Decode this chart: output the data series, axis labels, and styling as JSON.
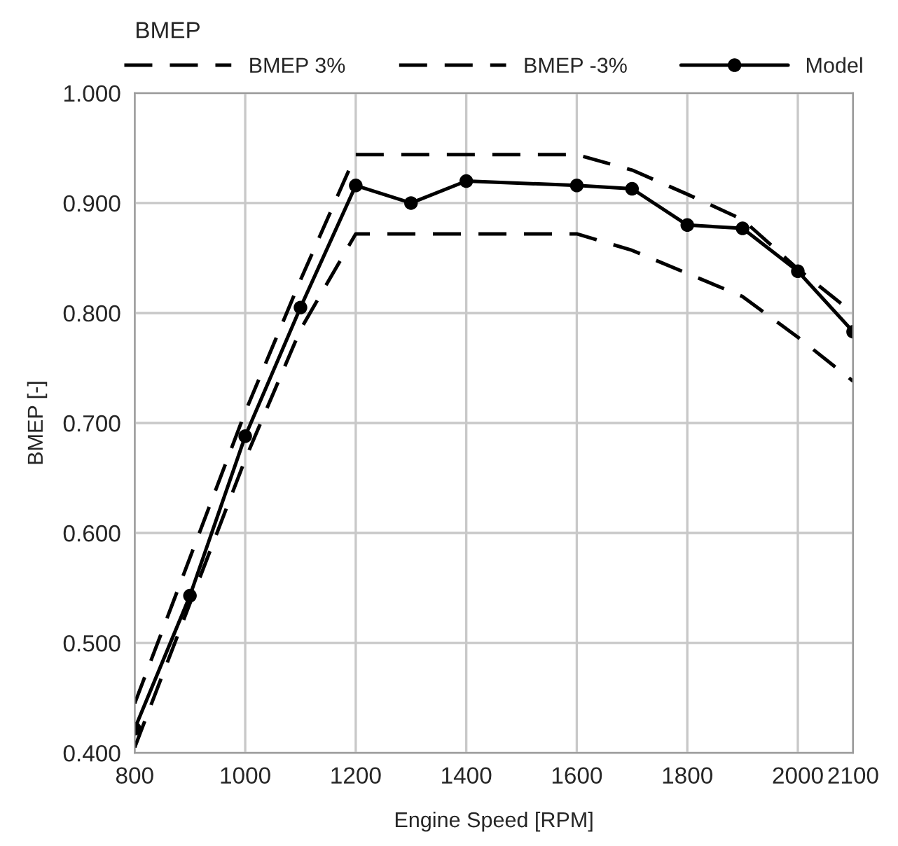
{
  "chart_data": {
    "type": "line",
    "title": "BMEP",
    "xlabel": "Engine Speed [RPM]",
    "ylabel": "BMEP [-]",
    "xlim": [
      800,
      2100
    ],
    "xticks": [
      800,
      1000,
      1200,
      1400,
      1600,
      1800,
      2000,
      2100
    ],
    "ylim": [
      0.4,
      1.0
    ],
    "yticks": [
      {
        "value": 0.4,
        "label": "0.400"
      },
      {
        "value": 0.5,
        "label": "0.500"
      },
      {
        "value": 0.6,
        "label": "0.600"
      },
      {
        "value": 0.7,
        "label": "0.700"
      },
      {
        "value": 0.8,
        "label": "0.800"
      },
      {
        "value": 0.9,
        "label": "0.900"
      },
      {
        "value": 1.0,
        "label": "1.000"
      }
    ],
    "grid": true,
    "legend": "top",
    "series": [
      {
        "name": "BMEP 3%",
        "color": "#000000",
        "line_style": "dashed",
        "marker": "none",
        "x": [
          800,
          1000,
          1100,
          1200,
          1600,
          1700,
          1800,
          1900,
          2000,
          2100
        ],
        "values": [
          0.445,
          0.71,
          0.83,
          0.944,
          0.944,
          0.93,
          0.908,
          0.885,
          0.84,
          0.8
        ]
      },
      {
        "name": "BMEP -3%",
        "color": "#000000",
        "line_style": "dashed",
        "marker": "none",
        "x": [
          800,
          1000,
          1100,
          1200,
          1600,
          1700,
          1800,
          1900,
          2000,
          2100
        ],
        "values": [
          0.405,
          0.667,
          0.785,
          0.872,
          0.872,
          0.857,
          0.836,
          0.815,
          0.778,
          0.738
        ]
      },
      {
        "name": "Model",
        "color": "#000000",
        "line_style": "solid",
        "marker": "circle",
        "x": [
          800,
          900,
          1000,
          1100,
          1200,
          1300,
          1400,
          1600,
          1700,
          1800,
          1900,
          2000,
          2100
        ],
        "values": [
          0.422,
          0.543,
          0.688,
          0.805,
          0.916,
          0.9,
          0.92,
          0.916,
          0.913,
          0.88,
          0.877,
          0.838,
          0.783
        ]
      }
    ]
  }
}
